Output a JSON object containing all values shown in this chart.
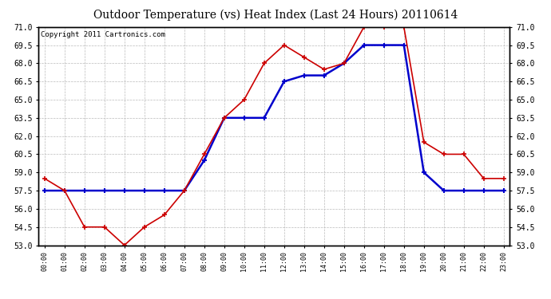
{
  "title": "Outdoor Temperature (vs) Heat Index (Last 24 Hours) 20110614",
  "copyright": "Copyright 2011 Cartronics.com",
  "x_labels": [
    "00:00",
    "01:00",
    "02:00",
    "03:00",
    "04:00",
    "05:00",
    "06:00",
    "07:00",
    "08:00",
    "09:00",
    "10:00",
    "11:00",
    "12:00",
    "13:00",
    "14:00",
    "15:00",
    "16:00",
    "17:00",
    "18:00",
    "19:00",
    "20:00",
    "21:00",
    "22:00",
    "23:00"
  ],
  "temp_values": [
    58.5,
    57.5,
    54.5,
    54.5,
    53.0,
    54.5,
    55.5,
    57.5,
    60.5,
    63.5,
    65.0,
    68.0,
    69.5,
    68.5,
    67.5,
    68.0,
    71.0,
    71.0,
    71.0,
    61.5,
    60.5,
    60.5,
    58.5,
    58.5
  ],
  "heatidx_values": [
    57.5,
    57.5,
    57.5,
    57.5,
    57.5,
    57.5,
    57.5,
    57.5,
    60.0,
    63.5,
    63.5,
    63.5,
    66.5,
    67.0,
    67.0,
    68.0,
    69.5,
    69.5,
    69.5,
    59.0,
    57.5,
    57.5,
    57.5,
    57.5
  ],
  "temp_color": "#cc0000",
  "heatidx_color": "#0000cc",
  "ylim_min": 53.0,
  "ylim_max": 71.0,
  "yticks": [
    53.0,
    54.5,
    56.0,
    57.5,
    59.0,
    60.5,
    62.0,
    63.5,
    65.0,
    66.5,
    68.0,
    69.5,
    71.0
  ],
  "bg_color": "#ffffff",
  "grid_color": "#bbbbbb",
  "title_fontsize": 10,
  "copyright_fontsize": 6.5,
  "tick_fontsize": 7,
  "xlabel_fontsize": 6
}
